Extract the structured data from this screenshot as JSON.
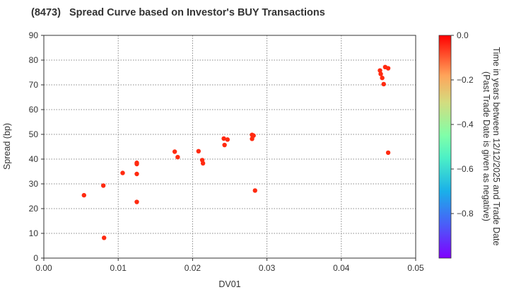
{
  "title": "(8473)   Spread Curve based on Investor's BUY Transactions",
  "chart_data": {
    "type": "scatter",
    "title": "(8473)   Spread Curve based on Investor's BUY Transactions",
    "xlabel": "DV01",
    "ylabel": "Spread (bp)",
    "xlim": [
      0.0,
      0.05
    ],
    "ylim": [
      0,
      90
    ],
    "xticks": [
      "0.00",
      "0.01",
      "0.02",
      "0.03",
      "0.04",
      "0.05"
    ],
    "yticks": [
      "0",
      "10",
      "20",
      "30",
      "40",
      "50",
      "60",
      "70",
      "80",
      "90"
    ],
    "grid": true,
    "colorbar": {
      "label_line1": "Time in years between 12/12/2025 and Trade Date",
      "label_line2": "(Past Trade Date is given as negative)",
      "range": [
        -1.0,
        0.0
      ],
      "ticks": [
        "0.0",
        "-0.2",
        "-0.4",
        "-0.6",
        "-0.8"
      ],
      "colormap": "rainbow"
    },
    "points": [
      {
        "x": 0.0054,
        "y": 25.4,
        "t": -0.02
      },
      {
        "x": 0.008,
        "y": 29.3,
        "t": -0.02
      },
      {
        "x": 0.0081,
        "y": 8.2,
        "t": -0.02
      },
      {
        "x": 0.0106,
        "y": 34.4,
        "t": -0.02
      },
      {
        "x": 0.0125,
        "y": 38.5,
        "t": -0.02
      },
      {
        "x": 0.0125,
        "y": 38.0,
        "t": -0.02
      },
      {
        "x": 0.0125,
        "y": 34.0,
        "t": -0.02
      },
      {
        "x": 0.0125,
        "y": 22.7,
        "t": -0.02
      },
      {
        "x": 0.0176,
        "y": 43.0,
        "t": -0.02
      },
      {
        "x": 0.018,
        "y": 40.8,
        "t": -0.02
      },
      {
        "x": 0.0208,
        "y": 43.2,
        "t": -0.02
      },
      {
        "x": 0.0213,
        "y": 39.6,
        "t": -0.02
      },
      {
        "x": 0.0214,
        "y": 38.3,
        "t": -0.02
      },
      {
        "x": 0.0242,
        "y": 48.3,
        "t": -0.02
      },
      {
        "x": 0.0247,
        "y": 47.9,
        "t": -0.02
      },
      {
        "x": 0.0243,
        "y": 45.7,
        "t": -0.02
      },
      {
        "x": 0.028,
        "y": 49.8,
        "t": -0.02
      },
      {
        "x": 0.0282,
        "y": 49.5,
        "t": -0.02
      },
      {
        "x": 0.028,
        "y": 48.2,
        "t": -0.02
      },
      {
        "x": 0.0284,
        "y": 27.3,
        "t": -0.02
      },
      {
        "x": 0.0452,
        "y": 75.8,
        "t": -0.02
      },
      {
        "x": 0.0453,
        "y": 74.4,
        "t": -0.02
      },
      {
        "x": 0.0455,
        "y": 72.8,
        "t": -0.02
      },
      {
        "x": 0.0459,
        "y": 77.2,
        "t": -0.02
      },
      {
        "x": 0.0463,
        "y": 76.7,
        "t": -0.02
      },
      {
        "x": 0.0457,
        "y": 70.3,
        "t": -0.02
      },
      {
        "x": 0.0463,
        "y": 42.6,
        "t": -0.02
      }
    ]
  },
  "colors": {
    "point": "#ff2a10",
    "grid": "#888888",
    "axis": "#333333"
  }
}
